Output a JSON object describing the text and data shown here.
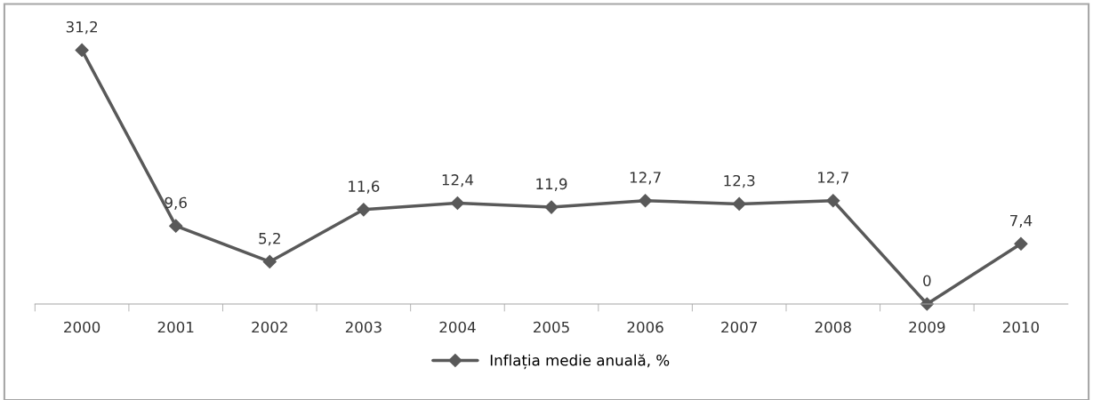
{
  "chart_data": {
    "type": "line",
    "categories": [
      "2000",
      "2001",
      "2002",
      "2003",
      "2004",
      "2005",
      "2006",
      "2007",
      "2008",
      "2009",
      "2010"
    ],
    "series": [
      {
        "name": "Inflația medie anuală, %",
        "color": "#595959",
        "values": [
          31.2,
          9.6,
          5.2,
          11.6,
          12.4,
          11.9,
          12.7,
          12.3,
          12.7,
          0,
          7.4
        ],
        "value_labels": [
          "31,2",
          "9,6",
          "5,2",
          "11,6",
          "12,4",
          "11,9",
          "12,7",
          "12,3",
          "12,7",
          "0",
          "7,4"
        ]
      }
    ],
    "marker": "diamond",
    "line_style": "solid",
    "legend": "bottom",
    "grid": false,
    "tick_labels": "x"
  }
}
